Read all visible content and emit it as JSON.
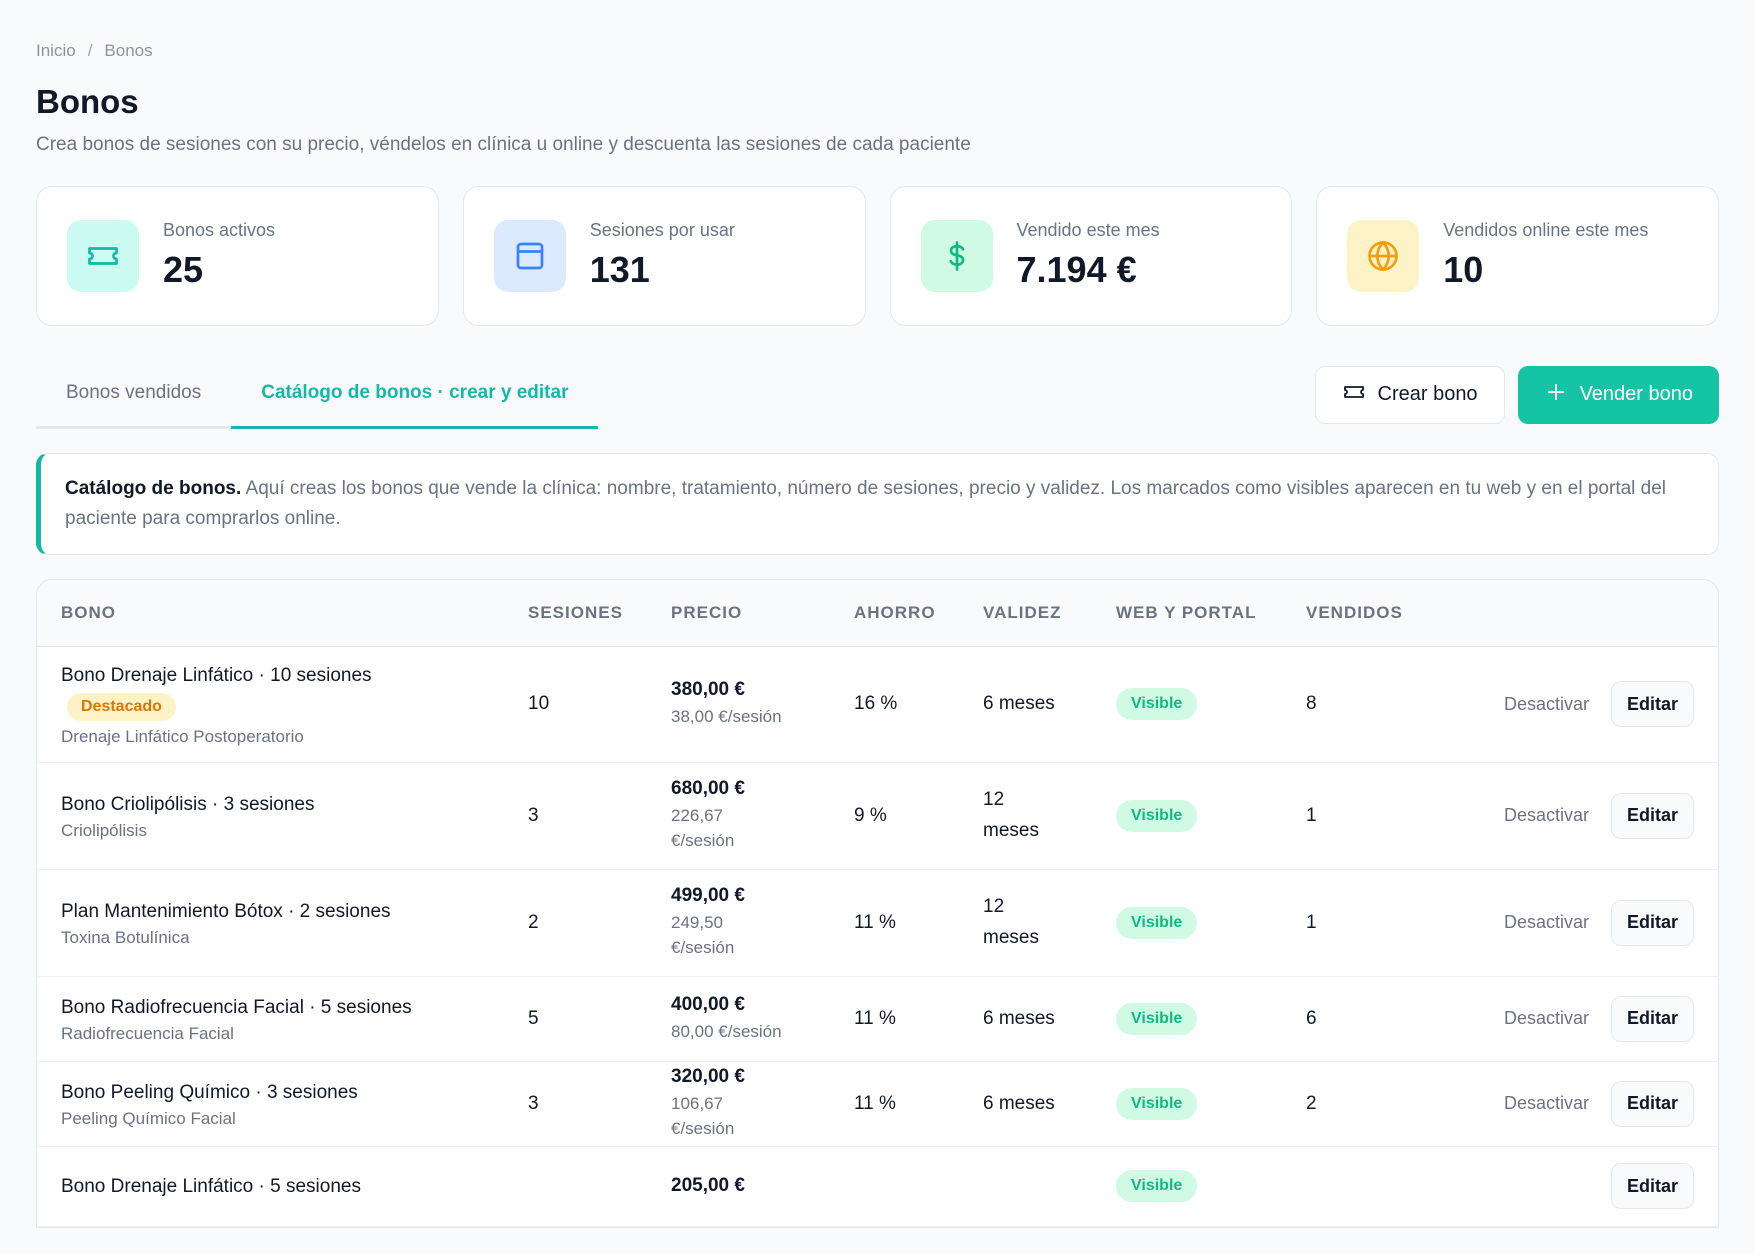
{
  "breadcrumb": {
    "home": "Inicio",
    "sep": "/",
    "current": "Bonos"
  },
  "header": {
    "title": "Bonos",
    "subtitle": "Crea bonos de sesiones con su precio, véndelos en clínica u online y descuenta las sesiones de cada paciente"
  },
  "stats": [
    {
      "label": "Bonos activos",
      "value": "25",
      "icon": "ticket-icon",
      "bg": "#ccfbf1",
      "color": "#14b8a6"
    },
    {
      "label": "Sesiones por usar",
      "value": "131",
      "icon": "calendar-icon",
      "bg": "#dbeafe",
      "color": "#3b82f6"
    },
    {
      "label": "Vendido este mes",
      "value": "7.194 €",
      "icon": "dollar-icon",
      "bg": "#d1fae5",
      "color": "#10b981"
    },
    {
      "label": "Vendidos online este mes",
      "value": "10",
      "icon": "globe-icon",
      "bg": "#fef3c7",
      "color": "#f59e0b"
    }
  ],
  "tabs": [
    {
      "label": "Bonos vendidos",
      "active": false
    },
    {
      "label": "Catálogo de bonos · crear y editar",
      "active": true
    }
  ],
  "actions": {
    "create": "Crear bono",
    "sell": "Vender bono"
  },
  "info": {
    "title": "Catálogo de bonos.",
    "text": "Aquí creas los bonos que vende la clínica: nombre, tratamiento, número de sesiones, precio y validez. Los marcados como visibles aparecen en tu web y en el portal del paciente para comprarlos online."
  },
  "table": {
    "columns": [
      "BONO",
      "SESIONES",
      "PRECIO",
      "AHORRO",
      "VALIDEZ",
      "WEB Y PORTAL",
      "VENDIDOS"
    ],
    "rows": [
      {
        "name": "Bono Drenaje Linfático · 10 sesiones",
        "badge": "Destacado",
        "treatment": "Drenaje Linfático Postoperatorio",
        "sessions": "10",
        "price": "380,00 €",
        "per_session": "38,00 €/sesión",
        "saving": "16 %",
        "validity": "6 meses",
        "web": "Visible",
        "sold": "8",
        "deactivate": "Desactivar",
        "edit": "Editar"
      },
      {
        "name": "Bono Criolipólisis · 3 sesiones",
        "badge": "",
        "treatment": "Criolipólisis",
        "sessions": "3",
        "price": "680,00 €",
        "per_session": "226,67 €/sesión",
        "saving": "9 %",
        "validity": "12 meses",
        "web": "Visible",
        "sold": "1",
        "deactivate": "Desactivar",
        "edit": "Editar"
      },
      {
        "name": "Plan Mantenimiento Bótox · 2 sesiones",
        "badge": "",
        "treatment": "Toxina Botulínica",
        "sessions": "2",
        "price": "499,00 €",
        "per_session": "249,50 €/sesión",
        "saving": "11 %",
        "validity": "12 meses",
        "web": "Visible",
        "sold": "1",
        "deactivate": "Desactivar",
        "edit": "Editar"
      },
      {
        "name": "Bono Radiofrecuencia Facial · 5 sesiones",
        "badge": "",
        "treatment": "Radiofrecuencia Facial",
        "sessions": "5",
        "price": "400,00 €",
        "per_session": "80,00 €/sesión",
        "saving": "11 %",
        "validity": "6 meses",
        "web": "Visible",
        "sold": "6",
        "deactivate": "Desactivar",
        "edit": "Editar"
      },
      {
        "name": "Bono Peeling Químico · 3 sesiones",
        "badge": "",
        "treatment": "Peeling Químico Facial",
        "sessions": "3",
        "price": "320,00 €",
        "per_session": "106,67 €/sesión",
        "saving": "11 %",
        "validity": "6 meses",
        "web": "Visible",
        "sold": "2",
        "deactivate": "Desactivar",
        "edit": "Editar"
      },
      {
        "name": "Bono Drenaje Linfático · 5 sesiones",
        "badge": "",
        "treatment": "",
        "sessions": "",
        "price": "205,00 €",
        "per_session": "",
        "saving": "",
        "validity": "",
        "web": "Visible",
        "sold": "",
        "deactivate": "",
        "edit": "Editar"
      }
    ]
  }
}
